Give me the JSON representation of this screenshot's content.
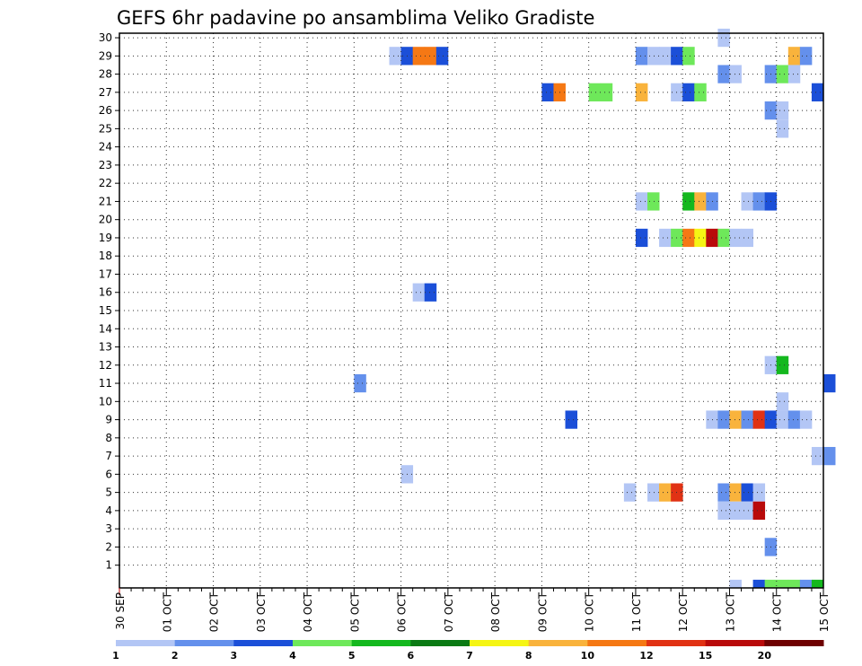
{
  "chart_data": {
    "type": "heatmap",
    "title": "GEFS 6hr padavine po ansamblima Veliko Gradiste",
    "y_categories": [
      "1",
      "2",
      "3",
      "4",
      "5",
      "6",
      "7",
      "8",
      "9",
      "10",
      "11",
      "12",
      "13",
      "14",
      "15",
      "16",
      "17",
      "18",
      "19",
      "20",
      "21",
      "22",
      "23",
      "24",
      "25",
      "26",
      "27",
      "28",
      "29",
      "30"
    ],
    "x_tick_labels": [
      "30 SEP",
      "01 OCT",
      "02 OCT",
      "03 OCT",
      "04 OCT",
      "05 OCT",
      "06 OCT",
      "07 OCT",
      "08 OCT",
      "09 OCT",
      "10 OCT",
      "11 OCT",
      "12 OCT",
      "13 OCT",
      "14 OCT",
      "15 OCT"
    ],
    "x_range_days": [
      0,
      15
    ],
    "grid": true,
    "legend": {
      "placement": "bottom",
      "labels": [
        "1",
        "2",
        "3",
        "4",
        "5",
        "6",
        "7",
        "8",
        "10",
        "12",
        "15",
        "20"
      ],
      "colors": [
        "#b3c6f5",
        "#6490ec",
        "#1b4fd8",
        "#6ee85a",
        "#14b81e",
        "#0a7a14",
        "#f5f514",
        "#f9b33c",
        "#f57814",
        "#e13214",
        "#b90a0a",
        "#6e0000"
      ]
    },
    "cells": [
      {
        "m": 30,
        "t": 51,
        "c": 0
      },
      {
        "m": 29,
        "t": 23,
        "c": 0
      },
      {
        "m": 29,
        "t": 24,
        "c": 2
      },
      {
        "m": 29,
        "t": 25,
        "c": 8
      },
      {
        "m": 29,
        "t": 26,
        "c": 8
      },
      {
        "m": 29,
        "t": 27,
        "c": 2
      },
      {
        "m": 29,
        "t": 44,
        "c": 1
      },
      {
        "m": 29,
        "t": 45,
        "c": 0
      },
      {
        "m": 29,
        "t": 46,
        "c": 0
      },
      {
        "m": 29,
        "t": 47,
        "c": 2
      },
      {
        "m": 29,
        "t": 48,
        "c": 3
      },
      {
        "m": 29,
        "t": 57,
        "c": 7
      },
      {
        "m": 29,
        "t": 58,
        "c": 1
      },
      {
        "m": 28,
        "t": 51,
        "c": 1
      },
      {
        "m": 28,
        "t": 52,
        "c": 0
      },
      {
        "m": 28,
        "t": 55,
        "c": 1
      },
      {
        "m": 28,
        "t": 56,
        "c": 3
      },
      {
        "m": 28,
        "t": 57,
        "c": 0
      },
      {
        "m": 27,
        "t": 36,
        "c": 2
      },
      {
        "m": 27,
        "t": 37,
        "c": 8
      },
      {
        "m": 27,
        "t": 40,
        "c": 3
      },
      {
        "m": 27,
        "t": 41,
        "c": 3
      },
      {
        "m": 27,
        "t": 44,
        "c": 7
      },
      {
        "m": 27,
        "t": 47,
        "c": 0
      },
      {
        "m": 27,
        "t": 48,
        "c": 2
      },
      {
        "m": 27,
        "t": 49,
        "c": 3
      },
      {
        "m": 27,
        "t": 59,
        "c": 2
      },
      {
        "m": 26,
        "t": 55,
        "c": 1
      },
      {
        "m": 26,
        "t": 56,
        "c": 0
      },
      {
        "m": 25,
        "t": 56,
        "c": 0
      },
      {
        "m": 21,
        "t": 44,
        "c": 0
      },
      {
        "m": 21,
        "t": 45,
        "c": 3
      },
      {
        "m": 21,
        "t": 48,
        "c": 4
      },
      {
        "m": 21,
        "t": 49,
        "c": 7
      },
      {
        "m": 21,
        "t": 50,
        "c": 1
      },
      {
        "m": 21,
        "t": 53,
        "c": 0
      },
      {
        "m": 21,
        "t": 54,
        "c": 1
      },
      {
        "m": 21,
        "t": 55,
        "c": 2
      },
      {
        "m": 19,
        "t": 44,
        "c": 2
      },
      {
        "m": 19,
        "t": 46,
        "c": 0
      },
      {
        "m": 19,
        "t": 47,
        "c": 3
      },
      {
        "m": 19,
        "t": 48,
        "c": 8
      },
      {
        "m": 19,
        "t": 49,
        "c": 6
      },
      {
        "m": 19,
        "t": 50,
        "c": 10
      },
      {
        "m": 19,
        "t": 51,
        "c": 3
      },
      {
        "m": 19,
        "t": 52,
        "c": 0
      },
      {
        "m": 19,
        "t": 53,
        "c": 0
      },
      {
        "m": 16,
        "t": 25,
        "c": 0
      },
      {
        "m": 16,
        "t": 26,
        "c": 2
      },
      {
        "m": 12,
        "t": 55,
        "c": 0
      },
      {
        "m": 12,
        "t": 56,
        "c": 4
      },
      {
        "m": 11,
        "t": 20,
        "c": 1
      },
      {
        "m": 11,
        "t": 60,
        "c": 2
      },
      {
        "m": 10,
        "t": 56,
        "c": 0
      },
      {
        "m": 9,
        "t": 38,
        "c": 2
      },
      {
        "m": 9,
        "t": 50,
        "c": 0
      },
      {
        "m": 9,
        "t": 51,
        "c": 1
      },
      {
        "m": 9,
        "t": 52,
        "c": 7
      },
      {
        "m": 9,
        "t": 53,
        "c": 1
      },
      {
        "m": 9,
        "t": 54,
        "c": 9
      },
      {
        "m": 9,
        "t": 55,
        "c": 2
      },
      {
        "m": 9,
        "t": 56,
        "c": 0
      },
      {
        "m": 9,
        "t": 57,
        "c": 1
      },
      {
        "m": 9,
        "t": 58,
        "c": 0
      },
      {
        "m": 7,
        "t": 59,
        "c": 0
      },
      {
        "m": 7,
        "t": 60,
        "c": 1
      },
      {
        "m": 6,
        "t": 24,
        "c": 0
      },
      {
        "m": 5,
        "t": 43,
        "c": 0
      },
      {
        "m": 5,
        "t": 45,
        "c": 0
      },
      {
        "m": 5,
        "t": 46,
        "c": 7
      },
      {
        "m": 5,
        "t": 47,
        "c": 9
      },
      {
        "m": 5,
        "t": 51,
        "c": 1
      },
      {
        "m": 5,
        "t": 52,
        "c": 7
      },
      {
        "m": 5,
        "t": 53,
        "c": 2
      },
      {
        "m": 5,
        "t": 54,
        "c": 0
      },
      {
        "m": 4,
        "t": 51,
        "c": 0
      },
      {
        "m": 4,
        "t": 52,
        "c": 0
      },
      {
        "m": 4,
        "t": 53,
        "c": 0
      },
      {
        "m": 4,
        "t": 54,
        "c": 10
      },
      {
        "m": 2,
        "t": 55,
        "c": 1
      },
      {
        "m": 0,
        "t": 52,
        "c": 0
      },
      {
        "m": 0,
        "t": 54,
        "c": 2
      },
      {
        "m": 0,
        "t": 55,
        "c": 3
      },
      {
        "m": 0,
        "t": 56,
        "c": 3
      },
      {
        "m": 0,
        "t": 57,
        "c": 3
      },
      {
        "m": 0,
        "t": 58,
        "c": 1
      },
      {
        "m": 0,
        "t": 59,
        "c": 4
      }
    ]
  }
}
